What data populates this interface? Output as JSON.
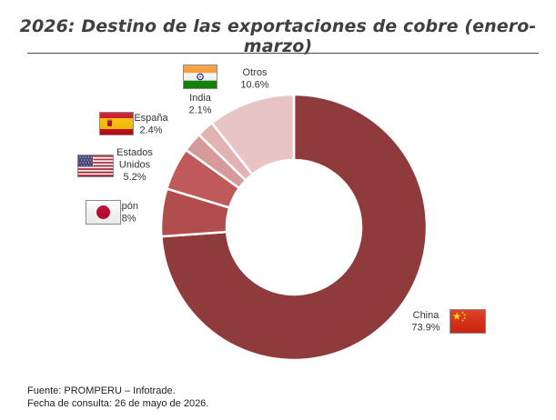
{
  "title": "2026: Destino de las exportaciones de cobre (enero-marzo)",
  "footer": {
    "source": "Fuente: PROMPERU – Infotrade.",
    "date": "Fecha de consulta: 26 de mayo de 2026."
  },
  "chart_data": {
    "type": "donut",
    "categories": [
      "China",
      "Japón",
      "Estados Unidos",
      "España",
      "India",
      "Otros"
    ],
    "values": [
      73.9,
      5.8,
      5.2,
      2.4,
      2.1,
      10.6
    ],
    "value_labels": [
      "73.9%",
      "5.8%",
      "5.2%",
      "2.4%",
      "2.1%",
      "10.6%"
    ],
    "colors": [
      "#8f3a3b",
      "#b14d4d",
      "#c05a5a",
      "#d69a9a",
      "#e2b3b3",
      "#e9c4c4"
    ],
    "label_lines": [
      [
        "China"
      ],
      [
        "Japón"
      ],
      [
        "Estados",
        "Unidos"
      ],
      [
        "España"
      ],
      [
        "India"
      ],
      [
        "Otros"
      ]
    ],
    "flag_icons": [
      "china-flag-icon",
      "japan-flag-icon",
      "usa-flag-icon",
      "spain-flag-icon",
      "india-flag-icon",
      ""
    ]
  }
}
